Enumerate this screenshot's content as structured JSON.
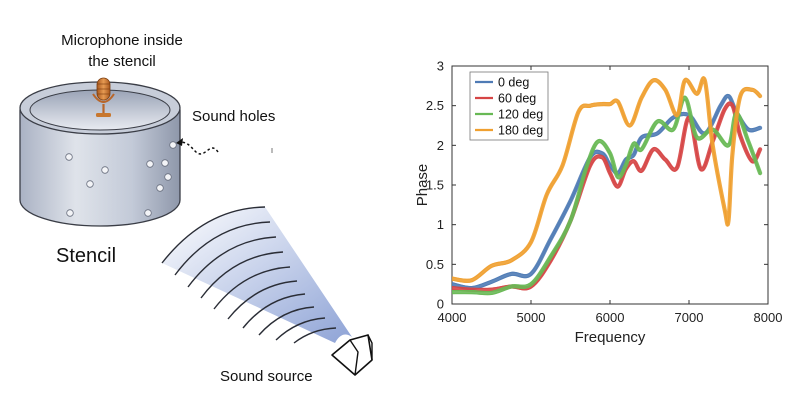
{
  "diagram": {
    "microphone_label_line1": "Microphone inside",
    "microphone_label_line2": "the stencil",
    "sound_holes_label": "Sound holes",
    "stencil_label": "Stencil",
    "sound_source_label": "Sound source",
    "colors": {
      "cylinder": "#c9cfdb",
      "cylinder_edge": "#3a3d46",
      "mic": "#c8772e",
      "wave": "#9fb0d8"
    },
    "icons": [
      "microphone-icon",
      "speaker-icon"
    ]
  },
  "chart_data": {
    "type": "line",
    "xlabel": "Frequency",
    "ylabel": "Phase",
    "xlim": [
      4000,
      8000
    ],
    "ylim": [
      0,
      3
    ],
    "xticks": [
      4000,
      5000,
      6000,
      7000,
      8000
    ],
    "yticks": [
      0,
      0.5,
      1,
      1.5,
      2,
      2.5,
      3
    ],
    "legend_position": "top-left",
    "series": [
      {
        "name": "0 deg",
        "color": "#4f7bb5",
        "x": [
          4000,
          4250,
          4500,
          4750,
          5000,
          5250,
          5500,
          5750,
          5900,
          6000,
          6100,
          6200,
          6300,
          6400,
          6600,
          6800,
          7000,
          7200,
          7400,
          7500,
          7600,
          7750,
          7900
        ],
        "y": [
          0.25,
          0.2,
          0.28,
          0.38,
          0.38,
          0.82,
          1.3,
          1.85,
          1.9,
          1.75,
          1.65,
          1.82,
          1.88,
          2.1,
          2.15,
          2.35,
          2.38,
          2.15,
          2.5,
          2.62,
          2.42,
          2.2,
          2.22
        ]
      },
      {
        "name": "60 deg",
        "color": "#d64545",
        "x": [
          4000,
          4250,
          4500,
          4750,
          5000,
          5250,
          5500,
          5750,
          5900,
          6000,
          6100,
          6200,
          6300,
          6400,
          6550,
          6700,
          6850,
          7000,
          7150,
          7300,
          7450,
          7550,
          7650,
          7800,
          7900
        ],
        "y": [
          0.2,
          0.18,
          0.18,
          0.22,
          0.22,
          0.55,
          1.05,
          1.75,
          1.85,
          1.65,
          1.48,
          1.7,
          1.8,
          1.68,
          1.95,
          1.82,
          1.72,
          2.35,
          1.7,
          2.05,
          2.45,
          2.5,
          2.12,
          1.8,
          1.95
        ]
      },
      {
        "name": "120 deg",
        "color": "#68b955",
        "x": [
          4000,
          4250,
          4500,
          4750,
          5000,
          5250,
          5500,
          5700,
          5850,
          6000,
          6100,
          6200,
          6300,
          6400,
          6600,
          6800,
          6950,
          7100,
          7300,
          7500,
          7600,
          7750,
          7900
        ],
        "y": [
          0.15,
          0.15,
          0.14,
          0.22,
          0.25,
          0.6,
          1.05,
          1.72,
          2.05,
          1.9,
          1.6,
          1.75,
          2.02,
          1.95,
          2.3,
          2.2,
          2.6,
          2.1,
          2.2,
          2.0,
          2.4,
          2.05,
          1.65
        ]
      },
      {
        "name": "180 deg",
        "color": "#f0a030",
        "x": [
          4000,
          4250,
          4500,
          4750,
          5000,
          5200,
          5400,
          5600,
          5750,
          5900,
          6000,
          6100,
          6250,
          6400,
          6550,
          6700,
          6850,
          6950,
          7100,
          7200,
          7300,
          7450,
          7500,
          7550,
          7650,
          7800,
          7900
        ],
        "y": [
          0.32,
          0.3,
          0.48,
          0.55,
          0.78,
          1.38,
          1.75,
          2.42,
          2.5,
          2.52,
          2.52,
          2.55,
          2.25,
          2.6,
          2.82,
          2.7,
          2.38,
          2.82,
          2.65,
          2.82,
          2.0,
          1.2,
          1.05,
          1.9,
          2.62,
          2.7,
          2.62
        ]
      }
    ]
  }
}
